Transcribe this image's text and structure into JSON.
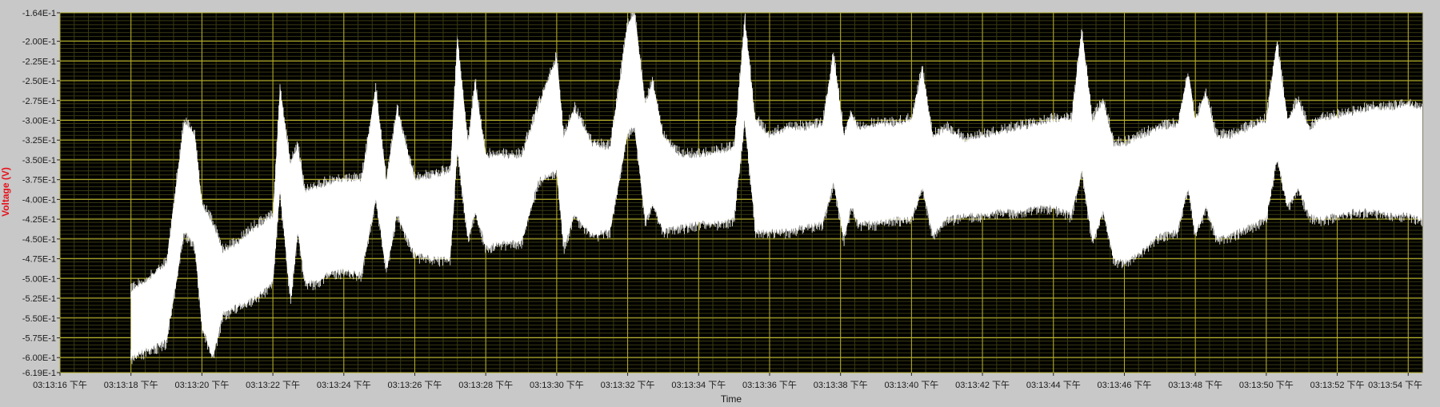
{
  "chart_data": {
    "type": "area",
    "xlabel": "Time",
    "ylabel": "Voltage (V)",
    "x_tick_labels": [
      "03:13:16 下午",
      "03:13:18 下午",
      "03:13:20 下午",
      "03:13:22 下午",
      "03:13:24 下午",
      "03:13:26 下午",
      "03:13:28 下午",
      "03:13:30 下午",
      "03:13:32 下午",
      "03:13:34 下午",
      "03:13:36 下午",
      "03:13:38 下午",
      "03:13:40 下午",
      "03:13:42 下午",
      "03:13:44 下午",
      "03:13:46 下午",
      "03:13:48 下午",
      "03:13:50 下午",
      "03:13:52 下午",
      "03:13:54 下午"
    ],
    "x_tick_seconds": [
      16,
      18,
      20,
      22,
      24,
      26,
      28,
      30,
      32,
      34,
      36,
      38,
      40,
      42,
      44,
      46,
      48,
      50,
      52,
      54
    ],
    "xlim": [
      16,
      54.4
    ],
    "y_tick_labels": [
      "-1.64E-1",
      "-2.00E-1",
      "-2.25E-1",
      "-2.50E-1",
      "-2.75E-1",
      "-3.00E-1",
      "-3.25E-1",
      "-3.50E-1",
      "-3.75E-1",
      "-4.00E-1",
      "-4.25E-1",
      "-4.50E-1",
      "-4.75E-1",
      "-5.00E-1",
      "-5.25E-1",
      "-5.50E-1",
      "-5.75E-1",
      "-6.00E-1",
      "-6.19E-1"
    ],
    "y_tick_values": [
      -0.164,
      -0.2,
      -0.225,
      -0.25,
      -0.275,
      -0.3,
      -0.325,
      -0.35,
      -0.375,
      -0.4,
      -0.425,
      -0.45,
      -0.475,
      -0.5,
      -0.525,
      -0.55,
      -0.575,
      -0.6,
      -0.619
    ],
    "ylim": [
      -0.619,
      -0.164
    ],
    "grid": true,
    "series": [
      {
        "color": "#ffffff",
        "x": [
          18.0,
          18.5,
          19.0,
          19.5,
          19.8,
          20.0,
          20.3,
          20.6,
          21.0,
          21.5,
          22.0,
          22.2,
          22.5,
          22.7,
          22.9,
          23.2,
          23.5,
          24.0,
          24.5,
          24.9,
          25.2,
          25.5,
          26.0,
          26.5,
          27.0,
          27.2,
          27.5,
          27.7,
          28.0,
          28.5,
          29.0,
          29.5,
          30.0,
          30.2,
          30.5,
          31.0,
          31.5,
          32.0,
          32.2,
          32.5,
          32.7,
          33.0,
          33.5,
          34.0,
          34.5,
          35.0,
          35.3,
          35.6,
          36.0,
          36.5,
          37.0,
          37.5,
          37.8,
          38.1,
          38.3,
          38.5,
          39.0,
          39.5,
          40.0,
          40.3,
          40.6,
          41.0,
          41.5,
          42.0,
          42.5,
          43.0,
          43.5,
          44.0,
          44.5,
          44.8,
          45.1,
          45.4,
          45.7,
          46.0,
          46.5,
          47.0,
          47.5,
          47.8,
          48.0,
          48.3,
          48.6,
          49.0,
          49.5,
          50.0,
          50.3,
          50.6,
          50.9,
          51.2,
          51.5,
          52.0,
          52.5,
          53.0,
          53.5,
          54.0,
          54.4
        ],
        "upper": [
          -0.515,
          -0.5,
          -0.48,
          -0.3,
          -0.32,
          -0.405,
          -0.43,
          -0.465,
          -0.455,
          -0.435,
          -0.42,
          -0.26,
          -0.355,
          -0.33,
          -0.39,
          -0.385,
          -0.38,
          -0.375,
          -0.375,
          -0.26,
          -0.375,
          -0.285,
          -0.375,
          -0.37,
          -0.365,
          -0.195,
          -0.33,
          -0.25,
          -0.345,
          -0.345,
          -0.345,
          -0.28,
          -0.22,
          -0.32,
          -0.285,
          -0.33,
          -0.335,
          -0.18,
          -0.165,
          -0.28,
          -0.25,
          -0.32,
          -0.345,
          -0.345,
          -0.34,
          -0.335,
          -0.17,
          -0.3,
          -0.32,
          -0.31,
          -0.31,
          -0.305,
          -0.215,
          -0.32,
          -0.29,
          -0.31,
          -0.305,
          -0.305,
          -0.3,
          -0.235,
          -0.32,
          -0.31,
          -0.325,
          -0.32,
          -0.315,
          -0.31,
          -0.305,
          -0.3,
          -0.3,
          -0.185,
          -0.3,
          -0.275,
          -0.33,
          -0.33,
          -0.32,
          -0.31,
          -0.305,
          -0.24,
          -0.3,
          -0.265,
          -0.32,
          -0.32,
          -0.31,
          -0.3,
          -0.2,
          -0.3,
          -0.275,
          -0.31,
          -0.3,
          -0.295,
          -0.29,
          -0.285,
          -0.285,
          -0.28,
          -0.285
        ],
        "lower": [
          -0.6,
          -0.59,
          -0.58,
          -0.44,
          -0.46,
          -0.56,
          -0.6,
          -0.545,
          -0.535,
          -0.525,
          -0.505,
          -0.39,
          -0.53,
          -0.44,
          -0.505,
          -0.505,
          -0.495,
          -0.49,
          -0.495,
          -0.4,
          -0.49,
          -0.42,
          -0.47,
          -0.475,
          -0.475,
          -0.34,
          -0.45,
          -0.415,
          -0.46,
          -0.455,
          -0.455,
          -0.375,
          -0.365,
          -0.46,
          -0.42,
          -0.445,
          -0.44,
          -0.315,
          -0.31,
          -0.43,
          -0.405,
          -0.44,
          -0.435,
          -0.43,
          -0.43,
          -0.425,
          -0.3,
          -0.44,
          -0.44,
          -0.44,
          -0.435,
          -0.43,
          -0.38,
          -0.45,
          -0.41,
          -0.43,
          -0.43,
          -0.425,
          -0.425,
          -0.385,
          -0.445,
          -0.425,
          -0.42,
          -0.42,
          -0.415,
          -0.415,
          -0.41,
          -0.41,
          -0.42,
          -0.365,
          -0.455,
          -0.415,
          -0.475,
          -0.48,
          -0.465,
          -0.445,
          -0.44,
          -0.385,
          -0.445,
          -0.41,
          -0.45,
          -0.445,
          -0.435,
          -0.425,
          -0.35,
          -0.41,
          -0.385,
          -0.42,
          -0.425,
          -0.42,
          -0.415,
          -0.415,
          -0.42,
          -0.42,
          -0.425
        ]
      }
    ]
  }
}
